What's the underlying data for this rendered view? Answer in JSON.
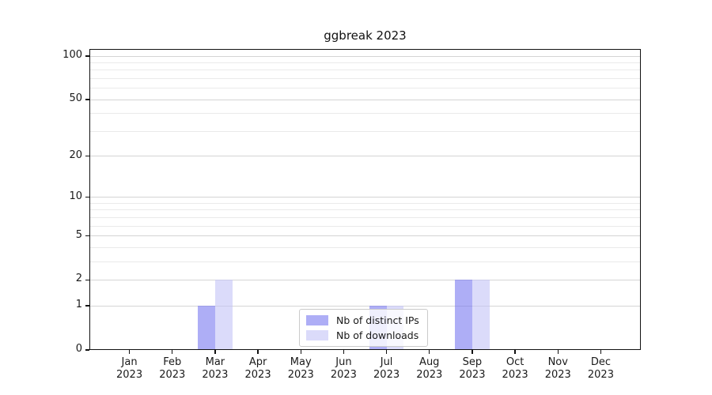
{
  "figure": {
    "background": "#ffffff"
  },
  "chart_data": {
    "type": "bar",
    "title": "ggbreak 2023",
    "categories": [
      "Jan 2023",
      "Feb 2023",
      "Mar 2023",
      "Apr 2023",
      "May 2023",
      "Jun 2023",
      "Jul 2023",
      "Aug 2023",
      "Sep 2023",
      "Oct 2023",
      "Nov 2023",
      "Dec 2023"
    ],
    "series": [
      {
        "name": "Nb of distinct IPs",
        "color": "rgba(120,120,240,0.6)",
        "values": [
          0,
          0,
          1,
          0,
          0,
          0,
          1,
          0,
          2,
          0,
          0,
          0
        ]
      },
      {
        "name": "Nb of downloads",
        "color": "rgba(195,195,247,0.6)",
        "values": [
          0,
          0,
          2,
          0,
          0,
          0,
          1,
          0,
          2,
          0,
          0,
          0
        ]
      }
    ],
    "xlabel": "",
    "ylabel": "",
    "yscale": "log1p",
    "ylim": [
      0,
      112
    ],
    "yticks": [
      0,
      1,
      2,
      5,
      10,
      20,
      50,
      100
    ],
    "yticks_minor": [
      3,
      4,
      6,
      7,
      8,
      9,
      30,
      40,
      60,
      70,
      80,
      90
    ],
    "grid": true,
    "legend": {
      "position": "inside-bottom-center",
      "items": [
        "Nb of distinct IPs",
        "Nb of downloads"
      ]
    }
  },
  "colors": {
    "grid_major": "#d4d4d4",
    "grid_minor": "#eaeaea",
    "axis": "#111111",
    "legend_border": "#cbcbcb",
    "bar_distinct_ips": "rgba(120,120,240,0.6)",
    "bar_downloads": "rgba(195,195,247,0.6)"
  }
}
